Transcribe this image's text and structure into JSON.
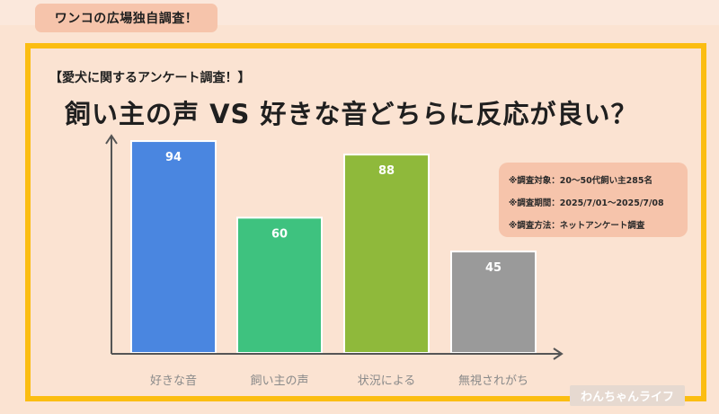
{
  "header": {
    "badge": "ワンコの広場独自調査！"
  },
  "chart_data": {
    "type": "bar",
    "subtitle": "【愛犬に関するアンケート調査！】",
    "title": "飼い主の声 VS 好きな音どちらに反応が良い？",
    "categories": [
      "好きな音",
      "飼い主の声",
      "状況による",
      "無視されがち"
    ],
    "values": [
      94,
      60,
      88,
      45
    ],
    "colors": [
      "#4a86e0",
      "#3ec27f",
      "#8fb93b",
      "#9a9a9a"
    ],
    "ylim": [
      0,
      100
    ],
    "grid": false
  },
  "info": {
    "line1": "※調査対象：20～50代飼い主285名",
    "line2": "※調査期間：2025/7/01～2025/7/08",
    "line3": "※調査方法：ネットアンケート調査"
  },
  "logo": {
    "text": "わんちゃんライフ"
  }
}
